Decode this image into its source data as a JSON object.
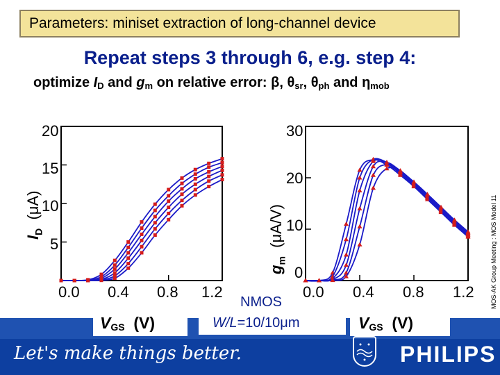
{
  "header": {
    "title": "Parameters: miniset extraction of long-channel device"
  },
  "heading": "Repeat steps 3 through 6, e.g. step 4:",
  "subtitle": {
    "prefix": "optimize ",
    "id": "I",
    "id_sub": "D",
    "and1": " and ",
    "gm": "g",
    "gm_sub": "m",
    "rest": " on relative error: β, θ",
    "sr": "sr",
    "comma": ", θ",
    "ph": "ph",
    "and2": " and η",
    "mob": "mob"
  },
  "side_text": "MOS-AK Group Meeting : MOS Model 11",
  "left_chart": {
    "ylabel_main": "I",
    "ylabel_sub": "D",
    "ylabel_unit": "(μA)",
    "yticks": [
      "20",
      "15",
      "10",
      "5"
    ],
    "xticks": [
      "0.0",
      "0.4",
      "0.8",
      "1.2"
    ],
    "xlabel_main": "V",
    "xlabel_sub": "GS",
    "xlabel_unit": "(V)"
  },
  "right_chart": {
    "ylabel_main": "g",
    "ylabel_sub": "m",
    "ylabel_unit": "(μA/V)",
    "yticks": [
      "30",
      "20",
      "10",
      "0"
    ],
    "xticks": [
      "0.0",
      "0.4",
      "0.8",
      "1.2"
    ],
    "xlabel_main": "V",
    "xlabel_sub": "GS",
    "xlabel_unit": "(V)"
  },
  "device": {
    "line1": "NMOS",
    "wl_label": "W/L",
    "wl_value": "=10/10μm"
  },
  "footer": {
    "slogan": "Let's make things better.",
    "brand": "PHILIPS"
  },
  "chart_data": [
    {
      "type": "line",
      "xlabel": "VGS (V)",
      "ylabel": "ID (μA)",
      "xlim": [
        0.0,
        1.2
      ],
      "ylim": [
        0,
        20
      ],
      "x": [
        0.0,
        0.1,
        0.2,
        0.3,
        0.4,
        0.5,
        0.6,
        0.7,
        0.8,
        0.9,
        1.0,
        1.1,
        1.2
      ],
      "series": [
        {
          "values": [
            0,
            0,
            0.1,
            0.8,
            2.6,
            5.0,
            7.6,
            9.9,
            11.8,
            13.3,
            14.4,
            15.2,
            15.8
          ]
        },
        {
          "values": [
            0,
            0,
            0.05,
            0.5,
            2.0,
            4.3,
            6.8,
            9.1,
            11.0,
            12.6,
            13.8,
            14.7,
            15.3
          ]
        },
        {
          "values": [
            0,
            0,
            0.02,
            0.3,
            1.5,
            3.6,
            6.0,
            8.3,
            10.3,
            11.9,
            13.2,
            14.1,
            14.8
          ]
        },
        {
          "values": [
            0,
            0,
            0.01,
            0.15,
            1.0,
            2.9,
            5.2,
            7.5,
            9.5,
            11.2,
            12.5,
            13.5,
            14.3
          ]
        },
        {
          "values": [
            0,
            0,
            0,
            0.08,
            0.6,
            2.2,
            4.4,
            6.7,
            8.7,
            10.4,
            11.8,
            12.9,
            13.7
          ]
        },
        {
          "values": [
            0,
            0,
            0,
            0.03,
            0.3,
            1.6,
            3.6,
            5.9,
            7.9,
            9.7,
            11.1,
            12.2,
            13.1
          ]
        }
      ]
    },
    {
      "type": "line",
      "xlabel": "VGS (V)",
      "ylabel": "gm (μA/V)",
      "xlim": [
        0.0,
        1.2
      ],
      "ylim": [
        0,
        30
      ],
      "x": [
        0.0,
        0.1,
        0.2,
        0.3,
        0.4,
        0.5,
        0.6,
        0.7,
        0.8,
        0.9,
        1.0,
        1.1,
        1.2
      ],
      "series": [
        {
          "values": [
            0,
            0,
            1.5,
            11,
            21.5,
            23.5,
            22.5,
            20.5,
            18.3,
            15.8,
            13.3,
            10.8,
            8.5
          ]
        },
        {
          "values": [
            0,
            0,
            0.8,
            8,
            20,
            23.6,
            22.8,
            20.8,
            18.5,
            16,
            13.5,
            11,
            8.7
          ]
        },
        {
          "values": [
            0,
            0,
            0.4,
            5,
            17.5,
            23.2,
            23,
            21,
            18.7,
            16.2,
            13.7,
            11.2,
            8.9
          ]
        },
        {
          "values": [
            0,
            0,
            0.2,
            3,
            14,
            22.2,
            23,
            21.3,
            18.9,
            16.4,
            13.9,
            11.4,
            9.1
          ]
        },
        {
          "values": [
            0,
            0,
            0.1,
            1.5,
            10.5,
            20.5,
            22.6,
            21.4,
            19.1,
            16.6,
            14.1,
            11.6,
            9.3
          ]
        },
        {
          "values": [
            0,
            0,
            0.05,
            0.8,
            7,
            18,
            21.8,
            21.2,
            19.2,
            16.8,
            14.3,
            11.8,
            9.5
          ]
        }
      ]
    }
  ]
}
